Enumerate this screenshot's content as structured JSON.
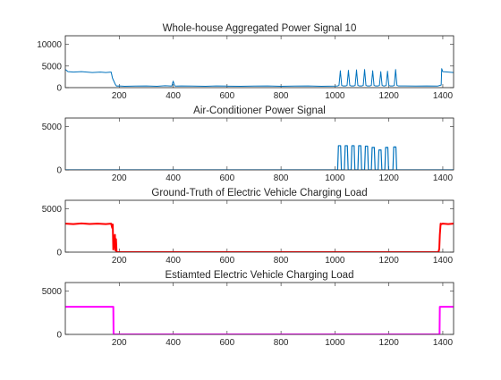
{
  "chart_data": [
    {
      "type": "line",
      "title": "Whole-house Aggregated Power Signal 10",
      "xlim": [
        0,
        1440
      ],
      "ylim": [
        0,
        12000
      ],
      "xticks": [
        200,
        400,
        600,
        800,
        1000,
        1200,
        1400
      ],
      "yticks": [
        0,
        5000,
        10000
      ],
      "color": "#0072BD",
      "linewidth": 1.0,
      "series": [
        {
          "x": [
            0,
            10,
            30,
            60,
            100,
            130,
            150,
            170,
            175,
            180,
            185,
            190,
            200,
            220,
            260,
            300,
            340,
            370,
            395,
            400,
            403,
            406,
            412,
            430,
            470,
            520,
            560,
            600,
            650,
            700,
            750,
            800,
            850,
            900,
            950,
            1000,
            1010,
            1015,
            1020,
            1025,
            1030,
            1040,
            1045,
            1050,
            1055,
            1060,
            1070,
            1075,
            1080,
            1085,
            1090,
            1100,
            1105,
            1110,
            1115,
            1120,
            1130,
            1135,
            1140,
            1145,
            1150,
            1160,
            1165,
            1170,
            1175,
            1180,
            1185,
            1190,
            1195,
            1200,
            1205,
            1215,
            1220,
            1225,
            1230,
            1235,
            1260,
            1300,
            1340,
            1380,
            1394,
            1396,
            1400,
            1420,
            1440
          ],
          "y": [
            4200,
            3700,
            3600,
            3700,
            3500,
            3600,
            3500,
            3600,
            2200,
            1500,
            800,
            350,
            400,
            300,
            350,
            400,
            320,
            450,
            350,
            1500,
            900,
            400,
            350,
            380,
            350,
            300,
            400,
            350,
            300,
            350,
            400,
            300,
            350,
            400,
            300,
            350,
            400,
            500,
            3900,
            500,
            400,
            400,
            500,
            4000,
            500,
            400,
            400,
            500,
            4100,
            500,
            400,
            400,
            500,
            4200,
            500,
            400,
            400,
            500,
            3900,
            500,
            400,
            400,
            500,
            3700,
            500,
            400,
            400,
            500,
            3800,
            500,
            400,
            400,
            500,
            4200,
            500,
            400,
            400,
            350,
            400,
            350,
            600,
            4400,
            3700,
            3600,
            3500
          ]
        }
      ]
    },
    {
      "type": "line",
      "title": "Air-Conditioner Power Signal",
      "xlim": [
        0,
        1440
      ],
      "ylim": [
        0,
        6000
      ],
      "xticks": [
        200,
        400,
        600,
        800,
        1000,
        1200,
        1400
      ],
      "yticks": [
        0,
        5000
      ],
      "color": "#0072BD",
      "linewidth": 1.2,
      "series": [
        {
          "x": [
            0,
            1010,
            1013,
            1017,
            1021,
            1024,
            1035,
            1038,
            1042,
            1046,
            1049,
            1060,
            1063,
            1067,
            1071,
            1074,
            1085,
            1088,
            1092,
            1096,
            1099,
            1110,
            1113,
            1117,
            1121,
            1124,
            1135,
            1138,
            1142,
            1146,
            1149,
            1160,
            1163,
            1167,
            1171,
            1174,
            1185,
            1188,
            1192,
            1196,
            1199,
            1215,
            1218,
            1222,
            1226,
            1229,
            1440
          ],
          "y": [
            0,
            0,
            2800,
            2800,
            2800,
            0,
            0,
            2800,
            2800,
            2800,
            0,
            0,
            2800,
            2800,
            2800,
            0,
            0,
            2800,
            2800,
            2800,
            0,
            0,
            2750,
            2750,
            2750,
            0,
            0,
            2600,
            2600,
            2600,
            0,
            0,
            2300,
            2300,
            2300,
            0,
            0,
            2600,
            2600,
            2600,
            0,
            0,
            2650,
            2650,
            2650,
            0,
            0
          ]
        }
      ]
    },
    {
      "type": "line",
      "title": "Ground-Truth of Electric Vehicle Charging Load",
      "xlim": [
        0,
        1440
      ],
      "ylim": [
        0,
        6000
      ],
      "xticks": [
        200,
        400,
        600,
        800,
        1000,
        1200,
        1400
      ],
      "yticks": [
        0,
        5000
      ],
      "color": "#FF0000",
      "linewidth": 2.0,
      "series": [
        {
          "x": [
            0,
            30,
            60,
            90,
            120,
            150,
            170,
            174,
            176,
            178,
            181,
            184,
            186,
            188,
            190,
            193,
            200,
            400,
            800,
            1200,
            1384,
            1387,
            1389,
            1392,
            1396,
            1400,
            1420,
            1440
          ],
          "y": [
            3300,
            3250,
            3320,
            3260,
            3300,
            3250,
            3300,
            2800,
            3200,
            300,
            1000,
            2000,
            200,
            1500,
            100,
            0,
            0,
            0,
            0,
            0,
            0,
            400,
            2000,
            3300,
            3250,
            3300,
            3250,
            3300
          ]
        }
      ]
    },
    {
      "type": "line",
      "title": "Estiamted Electric Vehicle Charging Load",
      "xlim": [
        0,
        1440
      ],
      "ylim": [
        0,
        6000
      ],
      "xticks": [
        200,
        400,
        600,
        800,
        1000,
        1200,
        1400
      ],
      "yticks": [
        0,
        5000
      ],
      "color": "#FF00FF",
      "linewidth": 2.0,
      "series": [
        {
          "x": [
            0,
            178,
            179,
            1388,
            1389,
            1440
          ],
          "y": [
            3200,
            3200,
            0,
            0,
            3200,
            3200
          ]
        }
      ]
    }
  ]
}
